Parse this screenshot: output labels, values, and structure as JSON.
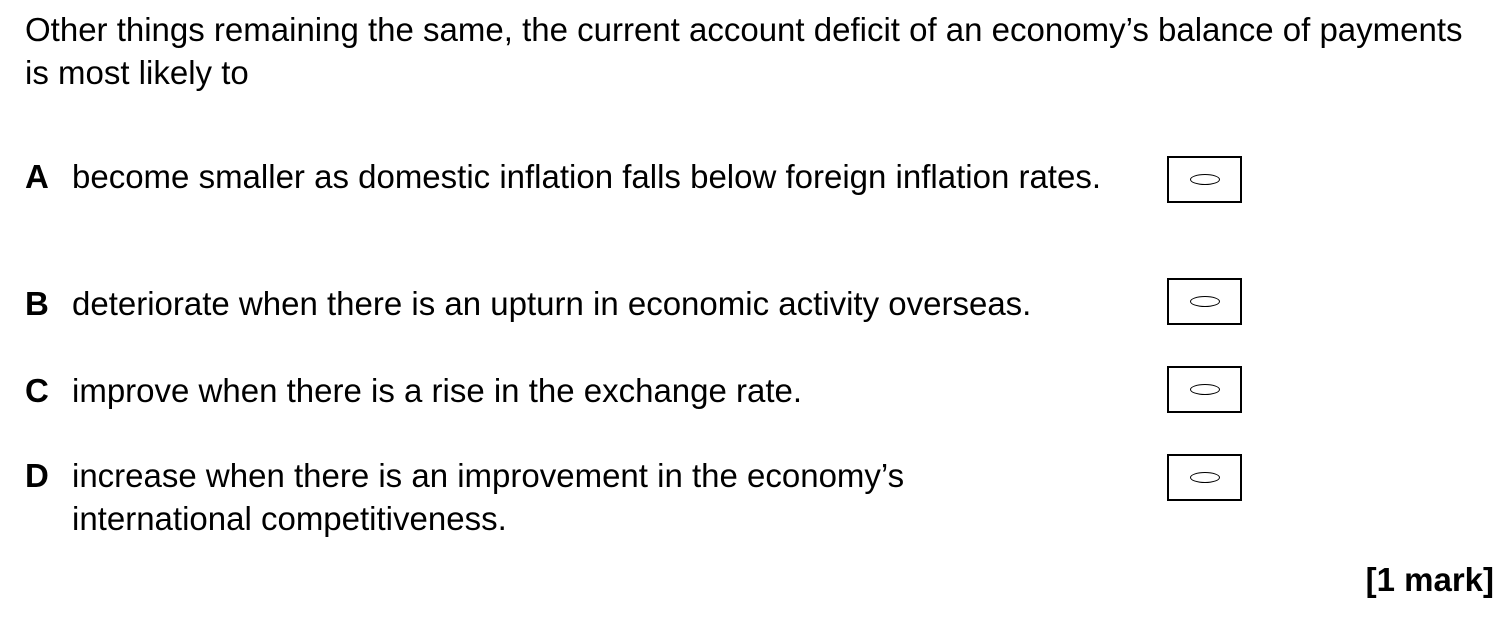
{
  "question": {
    "stem": "Other things remaining the same, the current account deficit of an economy’s balance of payments is most likely to"
  },
  "options": [
    {
      "letter": "A",
      "text": "become smaller as domestic inflation falls below foreign inflation rates."
    },
    {
      "letter": "B",
      "text": "deteriorate when there is an upturn in economic activity overseas."
    },
    {
      "letter": "C",
      "text": "improve when there is a rise in the exchange rate."
    },
    {
      "letter": "D",
      "text": "increase when there is an improvement in the economy’s international competitiveness."
    }
  ],
  "marks": "[1 mark]",
  "icons": {
    "answer_bubble": "oval-bubble-icon"
  }
}
